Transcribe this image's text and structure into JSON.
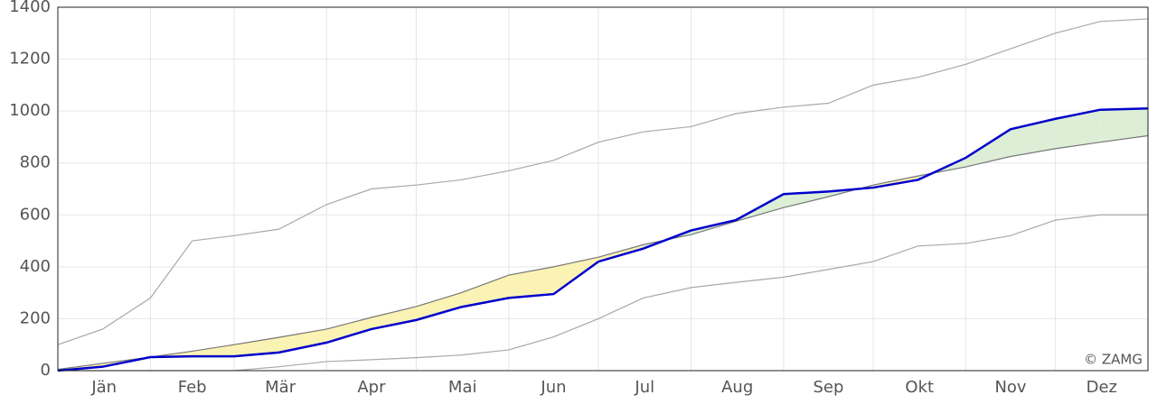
{
  "chart_data": {
    "type": "line",
    "annotation": "© ZAMG",
    "categories": [
      "Jän",
      "Feb",
      "Mär",
      "Apr",
      "Mai",
      "Jun",
      "Jul",
      "Aug",
      "Sep",
      "Okt",
      "Nov",
      "Dez"
    ],
    "x_gridlines": [
      0,
      31,
      59,
      90,
      120,
      151,
      181,
      212,
      243,
      273,
      304,
      334,
      365
    ],
    "x": [
      0,
      15,
      31,
      45,
      59,
      74,
      90,
      105,
      120,
      135,
      151,
      166,
      181,
      196,
      212,
      227,
      243,
      258,
      273,
      288,
      304,
      319,
      334,
      349,
      365
    ],
    "xlim": [
      0,
      365
    ],
    "ylim": [
      0,
      1400
    ],
    "yticks": [
      0,
      200,
      400,
      600,
      800,
      1000,
      1200,
      1400
    ],
    "grid": true,
    "fill_below_color": "#fbf3b4",
    "fill_above_color": "#dcefd6",
    "series": [
      {
        "color": "#a8a8a8",
        "values": [
          100,
          160,
          280,
          500,
          520,
          545,
          640,
          700,
          715,
          735,
          770,
          810,
          880,
          920,
          940,
          990,
          1015,
          1030,
          1100,
          1130,
          1180,
          1240,
          1300,
          1345,
          1355
        ]
      },
      {
        "color": "#a8a8a8",
        "values": [
          0,
          0,
          0,
          0,
          0,
          15,
          35,
          42,
          50,
          60,
          80,
          130,
          200,
          280,
          320,
          340,
          360,
          390,
          420,
          480,
          490,
          520,
          580,
          600,
          600
        ]
      },
      {
        "color": "#777777",
        "values": [
          5,
          28,
          52,
          75,
          100,
          128,
          160,
          205,
          247,
          300,
          368,
          400,
          437,
          485,
          524,
          575,
          628,
          670,
          715,
          750,
          785,
          825,
          855,
          880,
          905
        ]
      },
      {
        "color": "#0000cc",
        "values": [
          0,
          15,
          52,
          55,
          55,
          70,
          108,
          160,
          195,
          245,
          280,
          295,
          420,
          470,
          540,
          580,
          680,
          690,
          705,
          735,
          820,
          930,
          970,
          1005,
          1010
        ]
      }
    ]
  }
}
